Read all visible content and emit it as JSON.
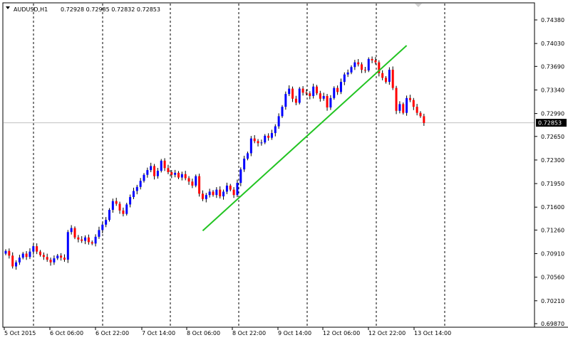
{
  "header": {
    "symbol_timeframe": "AUDUSD,H1",
    "values": "0.72928 0.72985 0.72832 0.72853"
  },
  "chart_data": {
    "type": "candlestick",
    "symbol": "AUDUSD",
    "timeframe": "H1",
    "ohlc": {
      "open": 0.72928,
      "high": 0.72985,
      "low": 0.72832,
      "close": 0.72853
    },
    "current_price": 0.72853,
    "current_price_label": "0.72853",
    "y_ticks": [
      0.7438,
      0.7403,
      0.7369,
      0.7334,
      0.7299,
      0.7265,
      0.723,
      0.7195,
      0.716,
      0.7126,
      0.7091,
      0.7056,
      0.7021,
      0.6987
    ],
    "y_tick_labels": [
      "0.74380",
      "0.74030",
      "0.73690",
      "0.73340",
      "0.72990",
      "0.72650",
      "0.72300",
      "0.71950",
      "0.71600",
      "0.71260",
      "0.70910",
      "0.70560",
      "0.70210",
      "0.69870"
    ],
    "x_tick_labels": [
      "5 Oct 2015",
      "6 Oct 06:00",
      "6 Oct 22:00",
      "7 Oct 14:00",
      "8 Oct 06:00",
      "8 Oct 22:00",
      "9 Oct 14:00",
      "12 Oct 06:00",
      "12 Oct 22:00",
      "13 Oct 14:00"
    ],
    "closes": [
      0.7095,
      0.7088,
      0.7072,
      0.7078,
      0.7085,
      0.7091,
      0.7086,
      0.7094,
      0.7102,
      0.7094,
      0.7089,
      0.7086,
      0.7082,
      0.7078,
      0.7084,
      0.7088,
      0.7085,
      0.7082,
      0.7123,
      0.7129,
      0.7115,
      0.7112,
      0.711,
      0.7115,
      0.7108,
      0.7106,
      0.7116,
      0.7126,
      0.7134,
      0.7141,
      0.7156,
      0.7169,
      0.7165,
      0.7155,
      0.715,
      0.7164,
      0.7175,
      0.7184,
      0.719,
      0.7199,
      0.7208,
      0.7215,
      0.7221,
      0.7206,
      0.7214,
      0.7229,
      0.7218,
      0.7212,
      0.7208,
      0.7211,
      0.7204,
      0.7209,
      0.7203,
      0.7198,
      0.7192,
      0.7206,
      0.718,
      0.7172,
      0.7178,
      0.7183,
      0.7178,
      0.7186,
      0.7176,
      0.7183,
      0.7192,
      0.7186,
      0.7178,
      0.7196,
      0.7216,
      0.7232,
      0.724,
      0.7262,
      0.7258,
      0.7255,
      0.7256,
      0.7266,
      0.7263,
      0.727,
      0.728,
      0.7295,
      0.7309,
      0.7328,
      0.7336,
      0.7321,
      0.7315,
      0.7336,
      0.733,
      0.7329,
      0.7325,
      0.7339,
      0.7329,
      0.7321,
      0.7325,
      0.7308,
      0.7322,
      0.7337,
      0.7331,
      0.7346,
      0.7357,
      0.736,
      0.7368,
      0.7375,
      0.7372,
      0.7364,
      0.7363,
      0.738,
      0.7378,
      0.7375,
      0.7359,
      0.7352,
      0.7346,
      0.7364,
      0.7337,
      0.7303,
      0.7313,
      0.73,
      0.7322,
      0.7319,
      0.7309,
      0.73,
      0.7295,
      0.7285
    ],
    "trendline": {
      "color": "#22c422",
      "from": {
        "bar": 57,
        "price": 0.7125
      },
      "to": {
        "bar": 116,
        "price": 0.74
      }
    },
    "colors": {
      "bull": "#0000ff",
      "bear": "#ff0000",
      "wick": "#000000",
      "grid": "#000000",
      "price_line": "#c0c0c0"
    }
  }
}
